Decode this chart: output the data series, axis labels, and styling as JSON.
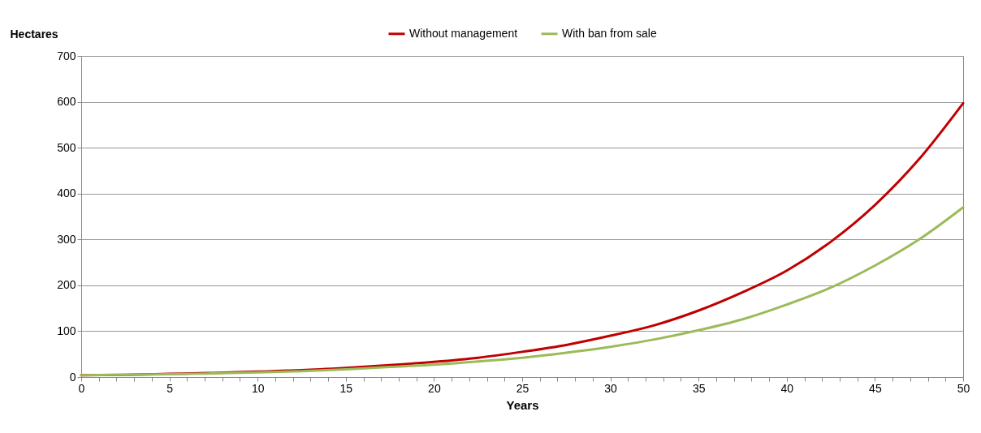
{
  "chart_data": {
    "type": "line",
    "xlabel": "Years",
    "ylabel": "Hectares",
    "x": [
      0,
      2.5,
      5,
      7.5,
      10,
      12.5,
      15,
      17.5,
      20,
      22.5,
      25,
      27.5,
      30,
      32.5,
      35,
      37.5,
      40,
      42.5,
      45,
      47.5,
      50
    ],
    "series": [
      {
        "name": "Without management",
        "color": "#c00000",
        "values": [
          4,
          5,
          7,
          9,
          12,
          15,
          20,
          26,
          33,
          42,
          55,
          70,
          90,
          113,
          145,
          185,
          232,
          295,
          375,
          475,
          597
        ]
      },
      {
        "name": "With ban from sale",
        "color": "#9bbb59",
        "values": [
          4,
          5,
          6,
          8,
          10,
          13,
          17,
          22,
          27,
          34,
          42,
          53,
          66,
          82,
          102,
          126,
          158,
          195,
          243,
          300,
          370
        ]
      }
    ],
    "xlim": [
      0,
      50
    ],
    "xticks": [
      0,
      {
        "value": 1,
        "label": null
      },
      {
        "value": 2,
        "label": null
      },
      {
        "value": 3,
        "label": null
      },
      {
        "value": 4,
        "label": null
      },
      5,
      {
        "value": 6,
        "label": null
      },
      {
        "value": 7,
        "label": null
      },
      {
        "value": 8,
        "label": null
      },
      {
        "value": 9,
        "label": null
      },
      10,
      {
        "value": 11,
        "label": null
      },
      {
        "value": 12,
        "label": null
      },
      {
        "value": 13,
        "label": null
      },
      {
        "value": 14,
        "label": null
      },
      15,
      {
        "value": 16,
        "label": null
      },
      {
        "value": 17,
        "label": null
      },
      {
        "value": 18,
        "label": null
      },
      {
        "value": 19,
        "label": null
      },
      20,
      {
        "value": 21,
        "label": null
      },
      {
        "value": 22,
        "label": null
      },
      {
        "value": 23,
        "label": null
      },
      {
        "value": 24,
        "label": null
      },
      25,
      {
        "value": 26,
        "label": null
      },
      {
        "value": 27,
        "label": null
      },
      {
        "value": 28,
        "label": null
      },
      {
        "value": 29,
        "label": null
      },
      30,
      {
        "value": 31,
        "label": null
      },
      {
        "value": 32,
        "label": null
      },
      {
        "value": 33,
        "label": null
      },
      {
        "value": 34,
        "label": null
      },
      35,
      {
        "value": 36,
        "label": null
      },
      {
        "value": 37,
        "label": null
      },
      {
        "value": 38,
        "label": null
      },
      {
        "value": 39,
        "label": null
      },
      40,
      {
        "value": 41,
        "label": null
      },
      {
        "value": 42,
        "label": null
      },
      {
        "value": 43,
        "label": null
      },
      {
        "value": 44,
        "label": null
      },
      45,
      {
        "value": 46,
        "label": null
      },
      {
        "value": 47,
        "label": null
      },
      {
        "value": 48,
        "label": null
      },
      {
        "value": 49,
        "label": null
      },
      50
    ],
    "ylim": [
      0,
      700
    ],
    "yticks": [
      0,
      100,
      200,
      300,
      400,
      500,
      600,
      700
    ],
    "grid": "y",
    "legend": "top",
    "marker": "none",
    "line_style": "solid"
  }
}
